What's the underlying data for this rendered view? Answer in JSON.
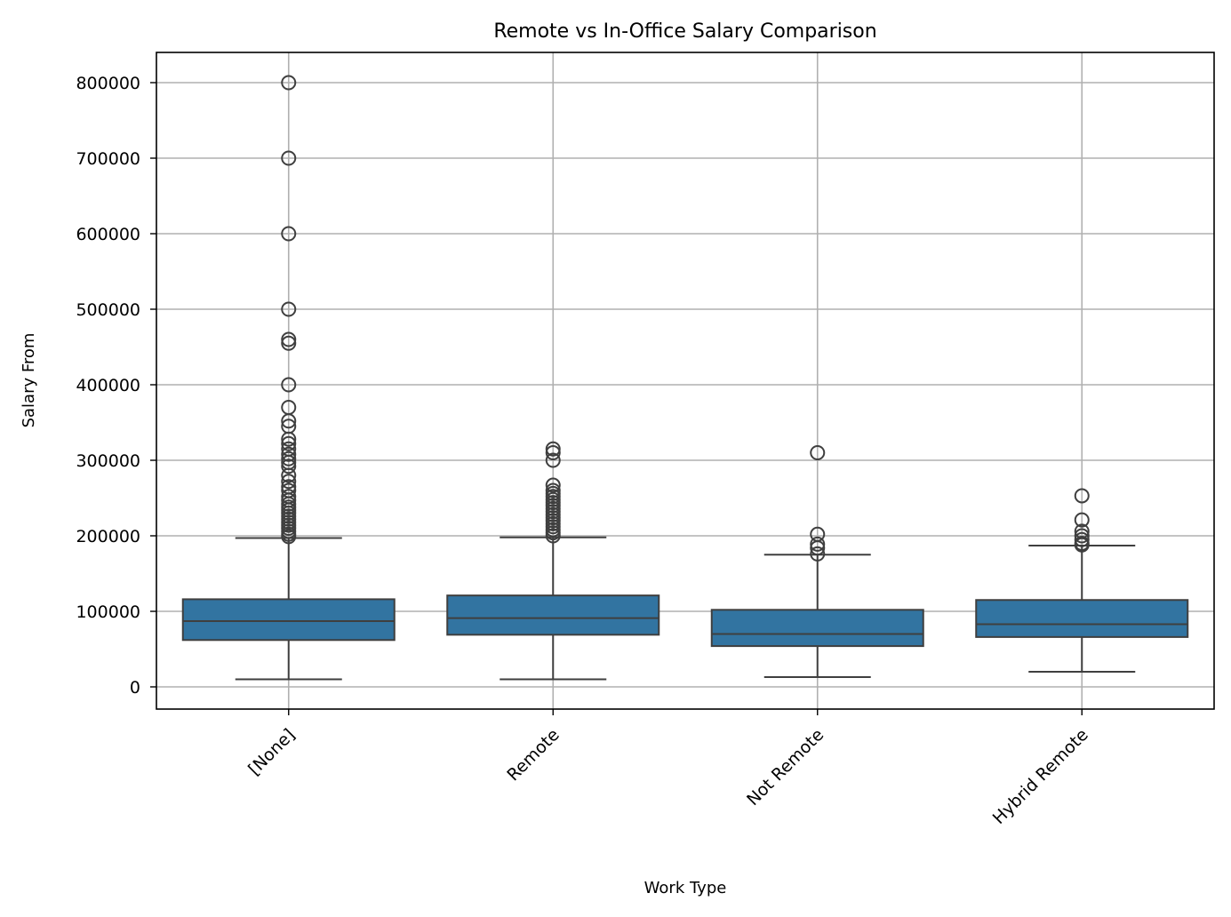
{
  "chart_data": {
    "type": "box",
    "title": "Remote vs In-Office Salary Comparison",
    "xlabel": "Work Type",
    "ylabel": "Salary From",
    "ylim": [
      -30000,
      840000
    ],
    "yticks": [
      "0",
      "100000",
      "200000",
      "300000",
      "400000",
      "500000",
      "600000",
      "700000",
      "800000"
    ],
    "grid": true,
    "box_color": "#3274a1",
    "edge_color": "#3f3f3f",
    "categories": [
      "[None]",
      "Remote",
      "Not Remote",
      "Hybrid Remote"
    ],
    "boxes": [
      {
        "category": "[None]",
        "whisker_low": 10000,
        "q1": 62000,
        "median": 87000,
        "q3": 116000,
        "whisker_high": 197000,
        "outliers": [
          800000,
          700000,
          600000,
          500000,
          460000,
          455000,
          400000,
          370000,
          352000,
          345000,
          328000,
          322000,
          315000,
          308000,
          302000,
          297000,
          292000,
          280000,
          272000,
          265000,
          260000,
          252000,
          247000,
          242000,
          238000,
          234000,
          230000,
          226000,
          222000,
          218000,
          214000,
          210000,
          206000,
          202000,
          199000
        ]
      },
      {
        "category": "Remote",
        "whisker_low": 10000,
        "q1": 69000,
        "median": 91000,
        "q3": 121000,
        "whisker_high": 198000,
        "outliers": [
          315000,
          310000,
          300000,
          267000,
          260000,
          256000,
          252000,
          248000,
          244000,
          240000,
          236000,
          232000,
          228000,
          224000,
          220000,
          216000,
          212000,
          208000,
          204000,
          200000
        ]
      },
      {
        "category": "Not Remote",
        "whisker_low": 13000,
        "q1": 54000,
        "median": 70000,
        "q3": 102000,
        "whisker_high": 175000,
        "outliers": [
          310000,
          202000,
          189000,
          184000,
          176000
        ]
      },
      {
        "category": "Hybrid Remote",
        "whisker_low": 20000,
        "q1": 66000,
        "median": 83000,
        "q3": 115000,
        "whisker_high": 187000,
        "outliers": [
          253000,
          221000,
          206000,
          200000,
          195000,
          190000,
          188000
        ]
      }
    ]
  }
}
